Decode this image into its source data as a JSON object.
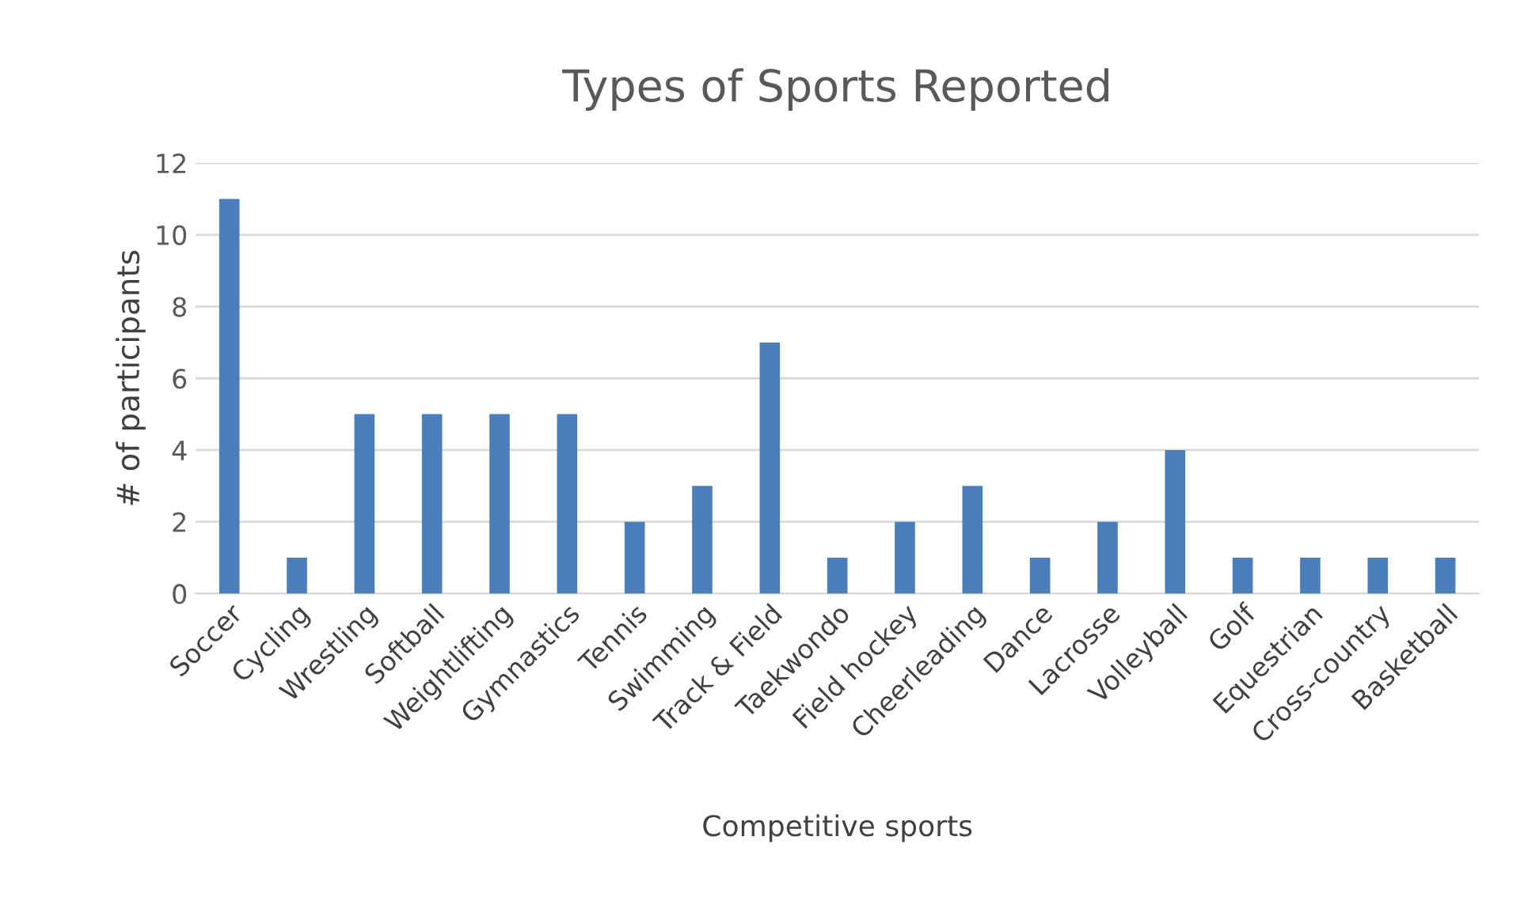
{
  "chart_data": {
    "type": "bar",
    "title": "Types of Sports Reported",
    "xlabel": "Competitive sports",
    "ylabel": "# of participants",
    "categories": [
      "Soccer",
      "Cycling",
      "Wrestling",
      "Softball",
      "Weightlifting",
      "Gymnastics",
      "Tennis",
      "Swimming",
      "Track & Field",
      "Taekwondo",
      "Field hockey",
      "Cheerleading",
      "Dance",
      "Lacrosse",
      "Volleyball",
      "Golf",
      "Equestrian",
      "Cross-country",
      "Basketball"
    ],
    "values": [
      11,
      1,
      5,
      5,
      5,
      5,
      2,
      3,
      7,
      1,
      2,
      3,
      1,
      2,
      4,
      1,
      1,
      1,
      1
    ],
    "color": "#4a7ebb",
    "ylim": [
      0,
      12
    ],
    "yticks": [
      0,
      2,
      4,
      6,
      8,
      10,
      12
    ],
    "grid": "y"
  }
}
